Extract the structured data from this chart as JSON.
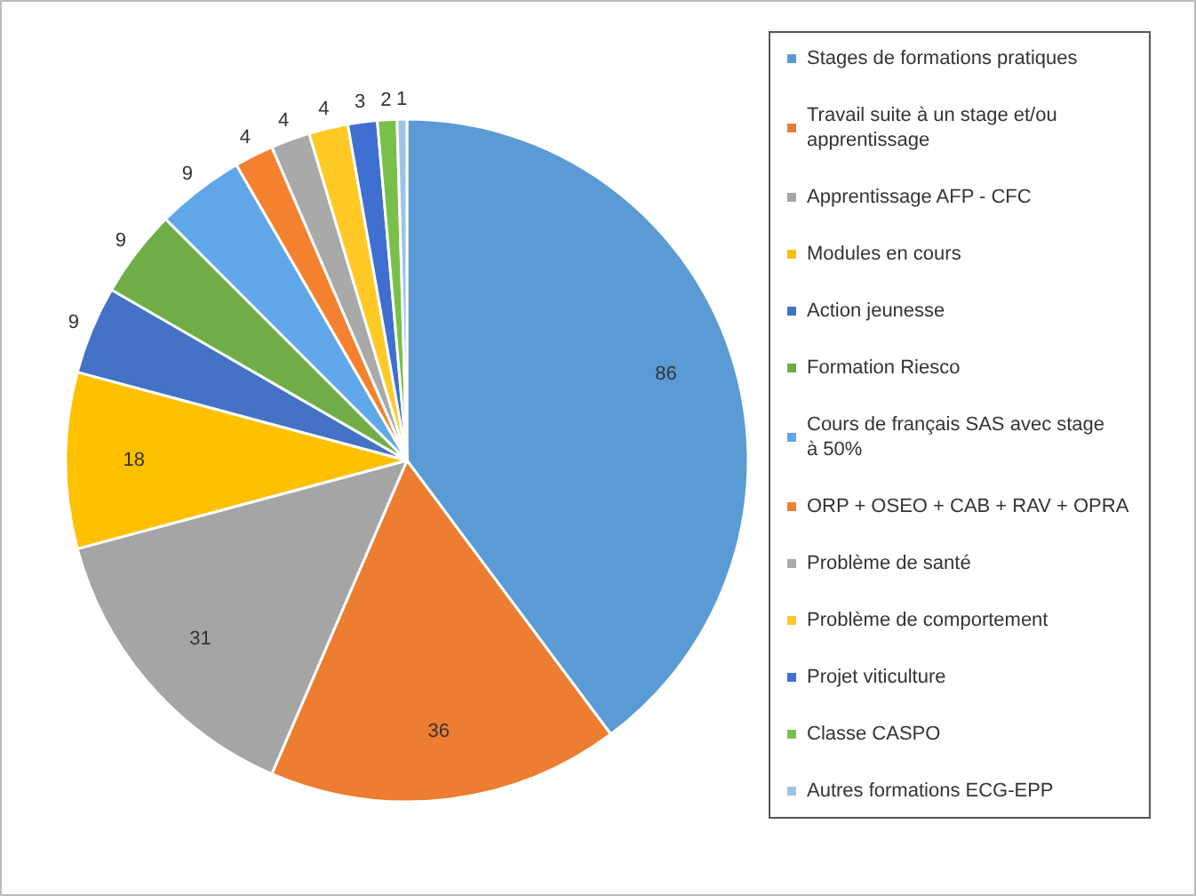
{
  "chart_data": {
    "type": "pie",
    "categories": [
      "Stages de formations pratiques",
      "Travail suite à un stage et/ou apprentissage",
      "Apprentissage AFP - CFC",
      "Modules en cours",
      "Action jeunesse",
      "Formation Riesco",
      "Cours de français SAS avec stage à 50%",
      "ORP + OSEO + CAB + RAV + OPRA",
      "Problème de santé",
      "Problème de comportement",
      "Projet viticulture",
      "Classe CASPO",
      "Autres formations ECG-EPP"
    ],
    "values": [
      86,
      36,
      31,
      18,
      9,
      9,
      9,
      4,
      4,
      4,
      3,
      2,
      1
    ],
    "colors": [
      "#5b9bd5",
      "#ed7d31",
      "#a5a5a5",
      "#ffc000",
      "#4472c4",
      "#70ad47",
      "#5fa7e8",
      "#f4812f",
      "#a9a9a9",
      "#ffc926",
      "#3f6fd0",
      "#79c04a",
      "#9dc3e6"
    ],
    "data_labels": true,
    "legend": "right"
  }
}
